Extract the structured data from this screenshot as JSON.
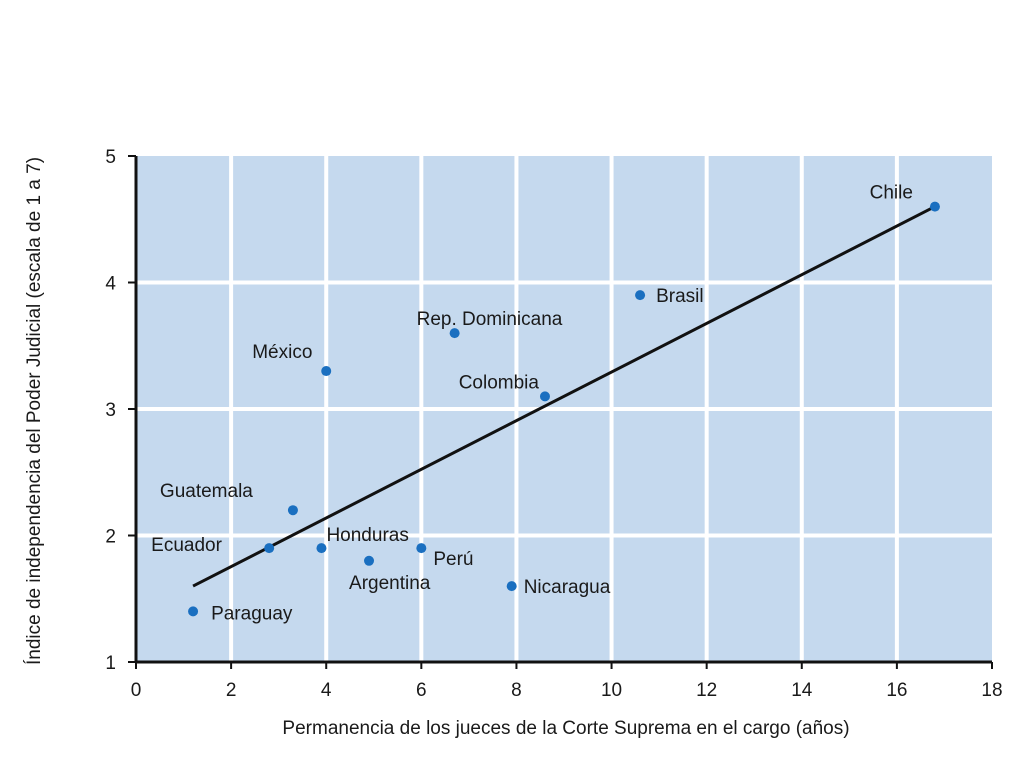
{
  "chart_data": {
    "type": "scatter",
    "xlabel": "Permanencia de los jueces de la Corte Suprema en el cargo (años)",
    "ylabel": "Índice de independencia del Poder Judicial (escala de 1 a 7)",
    "xlim": [
      0,
      18
    ],
    "ylim": [
      1,
      5
    ],
    "x_ticks": [
      "0",
      "2",
      "4",
      "6",
      "8",
      "10",
      "12",
      "14",
      "16",
      "18"
    ],
    "y_ticks": [
      "1",
      "2",
      "3",
      "4",
      "5"
    ],
    "grid": true,
    "background_color": "#c5d9ee",
    "grid_color": "#ffffff",
    "point_color": "#1a6fc0",
    "trend_line_color": "#111111",
    "trend_line": {
      "x": [
        1.2,
        16.8
      ],
      "y": [
        1.6,
        4.6
      ]
    },
    "points": [
      {
        "label": "Chile",
        "x": 16.8,
        "y": 4.6
      },
      {
        "label": "Brasil",
        "x": 10.6,
        "y": 3.9
      },
      {
        "label": "Rep. Dominicana",
        "x": 6.7,
        "y": 3.6
      },
      {
        "label": "México",
        "x": 4.0,
        "y": 3.3
      },
      {
        "label": "Colombia",
        "x": 8.6,
        "y": 3.1
      },
      {
        "label": "Guatemala",
        "x": 3.3,
        "y": 2.2
      },
      {
        "label": "Ecuador",
        "x": 2.8,
        "y": 1.9
      },
      {
        "label": "Honduras",
        "x": 3.9,
        "y": 1.9
      },
      {
        "label": "Perú",
        "x": 6.0,
        "y": 1.9
      },
      {
        "label": "Argentina",
        "x": 4.9,
        "y": 1.8
      },
      {
        "label": "Nicaragua",
        "x": 7.9,
        "y": 1.6
      },
      {
        "label": "Paraguay",
        "x": 1.2,
        "y": 1.4
      }
    ]
  }
}
